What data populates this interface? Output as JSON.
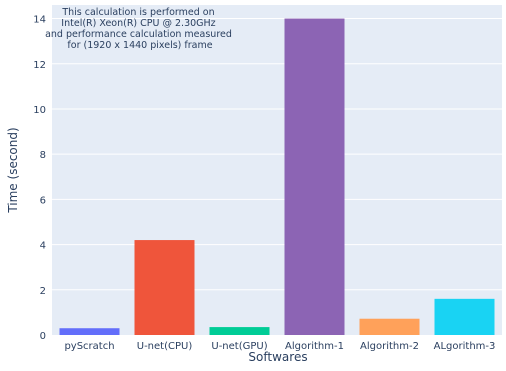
{
  "chart_data": {
    "type": "bar",
    "categories": [
      "pyScratch",
      "U-net(CPU)",
      "U-net(GPU)",
      "Algorithm-1",
      "Algorithm-2",
      "ALgorithm-3"
    ],
    "values": [
      0.3,
      4.2,
      0.35,
      14.0,
      0.72,
      1.6
    ],
    "colors": [
      "#636efa",
      "#ef553b",
      "#00cc96",
      "#8c64b4",
      "#ffa15a",
      "#19d3f3"
    ],
    "xlabel": "Softwares",
    "ylabel": "Time (second)",
    "ylim": [
      0,
      14.6
    ],
    "yticks": [
      0,
      2,
      4,
      6,
      8,
      10,
      12,
      14
    ],
    "grid": true,
    "background": "#e5ecf6",
    "annotation": [
      "This calculation is performed on",
      "Intel(R) Xeon(R) CPU @ 2.30GHz",
      "and performance calculation measured",
      "for (1920 x 1440 pixels) frame"
    ]
  }
}
